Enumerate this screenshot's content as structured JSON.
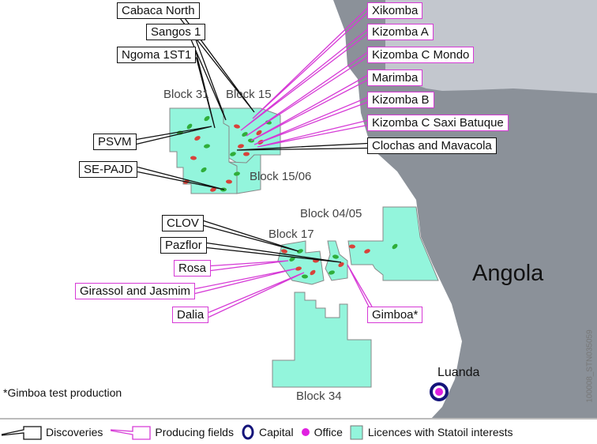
{
  "map": {
    "country_label": "Angola",
    "capital_label": "Luanda",
    "footnote": "*Gimboa test production",
    "image_code": "100008_STN035059",
    "blocks": [
      "Block 31",
      "Block 15",
      "Block 15/06",
      "Block 04/05",
      "Block 17",
      "Block 34"
    ],
    "discoveries": [
      "Cabaca North",
      "Sangos 1",
      "Ngoma 1ST1",
      "PSVM",
      "SE-PAJD",
      "Clochas and Mavacola",
      "CLOV",
      "Pazflor"
    ],
    "producing_fields": [
      "Xikomba",
      "Kizomba A",
      "Kizomba C Mondo",
      "Marimba",
      "Kizomba B",
      "Kizomba C Saxi Batuque",
      "Rosa",
      "Girassol and Jasmim",
      "Dalia",
      "Gimboa*"
    ]
  },
  "legend": {
    "discoveries": "Discoveries",
    "producing": "Producing fields",
    "capital": "Capital",
    "office": "Office",
    "licences": "Licences with Statoil interests"
  },
  "colors": {
    "land": "#8b9199",
    "neighbour_land": "#c3c7ce",
    "licence": "#93f5dc",
    "producing": "#d63ad6",
    "discovery": "#111111",
    "capital": "#14147a",
    "office": "#e020e0",
    "field_red": "#d8423a",
    "field_green": "#2fae3a"
  }
}
